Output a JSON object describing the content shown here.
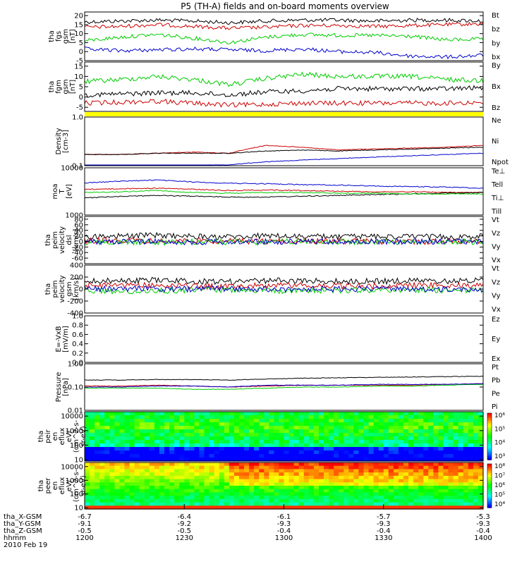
{
  "chart_data": {
    "type": "line",
    "title": "P5 (TH-A) fields and on-board moments overview",
    "panels": [
      {
        "name": "fgs",
        "ylabel": [
          "tha",
          "fgs",
          "gsm",
          "[nT]"
        ],
        "yrange": [
          -5,
          22
        ],
        "ticks": [
          "20",
          "15",
          "10",
          "5",
          "0",
          "-5"
        ],
        "tick_values": [
          20,
          15,
          10,
          5,
          0,
          -5
        ],
        "log": false,
        "series": [
          {
            "name": "Bt",
            "color": "#000000",
            "values": [
              16.5,
              17,
              17.5,
              17,
              16,
              17,
              17.5,
              17.5,
              17,
              17.5,
              17.5,
              17
            ]
          },
          {
            "name": "bz",
            "color": "#cc0000",
            "values": [
              13.5,
              14,
              15,
              14,
              13,
              13.5,
              14.5,
              14.5,
              14,
              14.5,
              15,
              15.5
            ]
          },
          {
            "name": "by",
            "color": "#00cc00",
            "values": [
              6,
              8,
              9.5,
              7.5,
              5,
              8,
              9.5,
              9,
              9,
              8.5,
              6.5,
              7
            ]
          },
          {
            "name": "bx",
            "color": "#0000cc",
            "values": [
              1.5,
              0.5,
              1,
              1.5,
              1,
              0.5,
              1.5,
              0,
              -0.5,
              -2.5,
              -3,
              -2
            ]
          }
        ]
      },
      {
        "name": "fgm",
        "ylabel": [
          "tha",
          "fgm",
          "gsm",
          "[nT]"
        ],
        "yrange": [
          -7,
          17
        ],
        "ticks": [
          "15",
          "10",
          "5",
          "0",
          "-5"
        ],
        "tick_values": [
          15,
          10,
          5,
          0,
          -5
        ],
        "log": false,
        "series": [
          {
            "name": "By",
            "color": "#00cc00",
            "values": [
              7.5,
              8.5,
              10,
              8.5,
              6,
              9,
              11,
              10,
              10,
              10,
              8.5,
              8
            ]
          },
          {
            "name": "Bx",
            "color": "#000000",
            "values": [
              1,
              1.5,
              2,
              2,
              1,
              2.5,
              3,
              4,
              4,
              4,
              4,
              4.5
            ]
          },
          {
            "name": "Bz",
            "color": "#cc0000",
            "values": [
              -3,
              -2.5,
              -2,
              -3,
              -4,
              -3.5,
              -3,
              -3,
              -3,
              -3,
              -3,
              -2.5
            ]
          }
        ]
      },
      {
        "name": "density",
        "ylabel": [
          "Density",
          "[cm-3]"
        ],
        "yrange": [
          0.1,
          1.0
        ],
        "ticks": [
          "1.0",
          "0.1"
        ],
        "tick_values": [
          1.0,
          0.1
        ],
        "log": true,
        "series": [
          {
            "name": "Ne",
            "color": "#cc0000",
            "values": [
              0.17,
              0.17,
              0.18,
              0.19,
              0.18,
              0.26,
              0.24,
              0.21,
              0.22,
              0.23,
              0.24,
              0.26
            ]
          },
          {
            "name": "Ni",
            "color": "#000000",
            "values": [
              0.17,
              0.17,
              0.18,
              0.18,
              0.18,
              0.2,
              0.21,
              0.2,
              0.21,
              0.22,
              0.23,
              0.24
            ]
          },
          {
            "name": "Npot",
            "color": "#0000cc",
            "values": [
              0.1,
              0.1,
              0.1,
              0.1,
              0.105,
              0.12,
              0.13,
              0.14,
              0.15,
              0.16,
              0.17,
              0.18
            ]
          }
        ]
      },
      {
        "name": "temperature",
        "ylabel": [
          "moa",
          "T",
          "[eV]"
        ],
        "yrange": [
          1000,
          10000
        ],
        "ticks": [
          "10000",
          "1000"
        ],
        "tick_values": [
          10000,
          1000
        ],
        "log": true,
        "series": [
          {
            "name": "Te⊥",
            "color": "#cc0000",
            "values": [
              3500,
              3600,
              3700,
              3500,
              3300,
              3400,
              3300,
              3200,
              3100,
              3100,
              3000,
              3000
            ]
          },
          {
            "name": "Tell",
            "color": "#000000",
            "values": [
              2300,
              2500,
              2600,
              2500,
              2400,
              2400,
              2500,
              2600,
              2700,
              2800,
              2900,
              3000
            ]
          },
          {
            "name": "Ti⊥",
            "color": "#0000cc",
            "values": [
              4800,
              5200,
              5500,
              5000,
              4700,
              4600,
              4400,
              4300,
              4100,
              4000,
              3900,
              3700
            ]
          },
          {
            "name": "Till",
            "color": "#00cc00",
            "values": [
              3000,
              3100,
              3300,
              3000,
              2900,
              3000,
              3000,
              2900,
              2900,
              2800,
              2800,
              2800
            ]
          }
        ]
      },
      {
        "name": "peim",
        "ylabel": [
          "tha",
          "peim",
          "velocity",
          "dsl",
          "[km/s]"
        ],
        "yrange": [
          -80,
          90
        ],
        "ticks": [
          "80",
          "60",
          "40",
          "20",
          "0",
          "-20",
          "-40",
          "-60"
        ],
        "tick_values": [
          80,
          60,
          40,
          20,
          0,
          -20,
          -40,
          -60
        ],
        "log": false,
        "series": [
          {
            "name": "Vt",
            "color": "#000000",
            "values": [
              18,
              20,
              22,
              18,
              16,
              20,
              18,
              17,
              18,
              17,
              16,
              18
            ]
          },
          {
            "name": "Vz",
            "color": "#cc0000",
            "values": [
              2,
              4,
              0,
              3,
              1,
              0,
              2,
              1,
              0,
              -1,
              0,
              1
            ]
          },
          {
            "name": "Vy",
            "color": "#00cc00",
            "values": [
              -3,
              -2,
              -4,
              -1,
              -2,
              -3,
              -1,
              -2,
              -2,
              -3,
              -2,
              -1
            ]
          },
          {
            "name": "Vx",
            "color": "#0000cc",
            "values": [
              -2,
              -1,
              0,
              -3,
              -2,
              -1,
              0,
              -1,
              -2,
              -1,
              0,
              -1
            ]
          }
        ]
      },
      {
        "name": "peim_gsm",
        "ylabel": [
          "tha",
          "peim",
          "velocity",
          "gsm",
          "[km/s]"
        ],
        "yrange": [
          -400,
          400
        ],
        "ticks": [
          "400",
          "200",
          "0",
          "-200",
          "-400"
        ],
        "tick_values": [
          400,
          200,
          0,
          -200,
          -400
        ],
        "log": false,
        "series": [
          {
            "name": "Vt",
            "color": "#000000",
            "values": [
              130,
              140,
              150,
              130,
              120,
              140,
              140,
              130,
              130,
              140,
              130,
              140
            ]
          },
          {
            "name": "Vz",
            "color": "#cc0000",
            "values": [
              60,
              70,
              60,
              50,
              40,
              60,
              60,
              50,
              50,
              60,
              60,
              60
            ]
          },
          {
            "name": "Vy",
            "color": "#00cc00",
            "values": [
              -20,
              -40,
              -30,
              -20,
              -10,
              -30,
              -20,
              -20,
              -20,
              -10,
              -20,
              -20
            ]
          },
          {
            "name": "Vx",
            "color": "#0000cc",
            "values": [
              0,
              5,
              0,
              0,
              5,
              0,
              0,
              0,
              0,
              0,
              0,
              0
            ]
          }
        ]
      },
      {
        "name": "efield",
        "ylabel": [
          "E=-VxB",
          "[mV/m]"
        ],
        "yrange": [
          0,
          1.0
        ],
        "ticks": [
          "1.0",
          "0.8",
          "0.6",
          "0.4",
          "0.2",
          "0.0"
        ],
        "tick_values": [
          1.0,
          0.8,
          0.6,
          0.4,
          0.2,
          0.0
        ],
        "log": false,
        "series": [
          {
            "name": "Ez",
            "color": "#cc0000",
            "values": []
          },
          {
            "name": "Ey",
            "color": "#00cc00",
            "values": []
          },
          {
            "name": "Ex",
            "color": "#0000cc",
            "values": []
          }
        ]
      },
      {
        "name": "pressure",
        "ylabel": [
          "Pressure",
          "[nPa]"
        ],
        "yrange": [
          0.01,
          1.0
        ],
        "ticks": [
          "1.00",
          "0.10",
          "0.01"
        ],
        "tick_values": [
          1.0,
          0.1,
          0.01
        ],
        "log": true,
        "series": [
          {
            "name": "Pt",
            "color": "#000000",
            "values": [
              0.2,
              0.2,
              0.21,
              0.21,
              0.2,
              0.22,
              0.24,
              0.25,
              0.26,
              0.27,
              0.28,
              0.29
            ]
          },
          {
            "name": "Pb",
            "color": "#cc0000",
            "values": [
              0.11,
              0.11,
              0.12,
              0.11,
              0.1,
              0.11,
              0.12,
              0.12,
              0.12,
              0.12,
              0.13,
              0.14
            ]
          },
          {
            "name": "Pe",
            "color": "#00cc00",
            "values": [
              0.09,
              0.09,
              0.09,
              0.08,
              0.08,
              0.09,
              0.1,
              0.1,
              0.11,
              0.11,
              0.12,
              0.13
            ]
          },
          {
            "name": "Pi",
            "color": "#0000cc",
            "values": [
              0.1,
              0.1,
              0.11,
              0.11,
              0.1,
              0.12,
              0.12,
              0.12,
              0.13,
              0.13,
              0.13,
              0.14
            ]
          }
        ]
      },
      {
        "name": "peir_spectrogram",
        "type": "heatmap",
        "ylabel": [
          "tha",
          "peir",
          "en",
          "eflux",
          "eV/",
          "(cm^2-s-",
          "sr-eV)"
        ],
        "yrange": [
          8,
          20000
        ],
        "ticks": [
          "10000",
          "1000",
          "100",
          "10"
        ],
        "tick_values": [
          10000,
          1000,
          100,
          10
        ],
        "log": true,
        "colorbar_ticks": [
          "10⁶",
          "10⁵",
          "10⁴",
          "10³"
        ]
      },
      {
        "name": "peer_spectrogram",
        "type": "heatmap",
        "ylabel": [
          "tha",
          "peer",
          "en",
          "eflux",
          "eV/",
          "(cm^2-s-",
          "sr-eV)"
        ],
        "yrange": [
          8,
          20000
        ],
        "ticks": [
          "10000",
          "1000",
          "100",
          "10"
        ],
        "tick_values": [
          10000,
          1000,
          100,
          10
        ],
        "log": true,
        "colorbar_ticks": [
          "10⁸",
          "10⁷",
          "10⁶",
          "10⁵",
          "10⁴"
        ]
      }
    ],
    "x_labels": [
      "tha_X-GSM",
      "tha_Y-GSM",
      "tha_Z-GSM",
      "hhmm"
    ],
    "date_label": "2010 Feb 19",
    "x_ticks": [
      {
        "x": "-6.7",
        "y": "-9.1",
        "z": "-0.5",
        "t": "1200"
      },
      {
        "x": "-6.4",
        "y": "-9.2",
        "z": "-0.5",
        "t": "1230"
      },
      {
        "x": "-6.1",
        "y": "-9.3",
        "z": "-0.4",
        "t": "1300"
      },
      {
        "x": "-5.7",
        "y": "-9.3",
        "z": "-0.4",
        "t": "1330"
      },
      {
        "x": "-5.3",
        "y": "-9.3",
        "z": "-0.4",
        "t": "1400"
      }
    ]
  }
}
